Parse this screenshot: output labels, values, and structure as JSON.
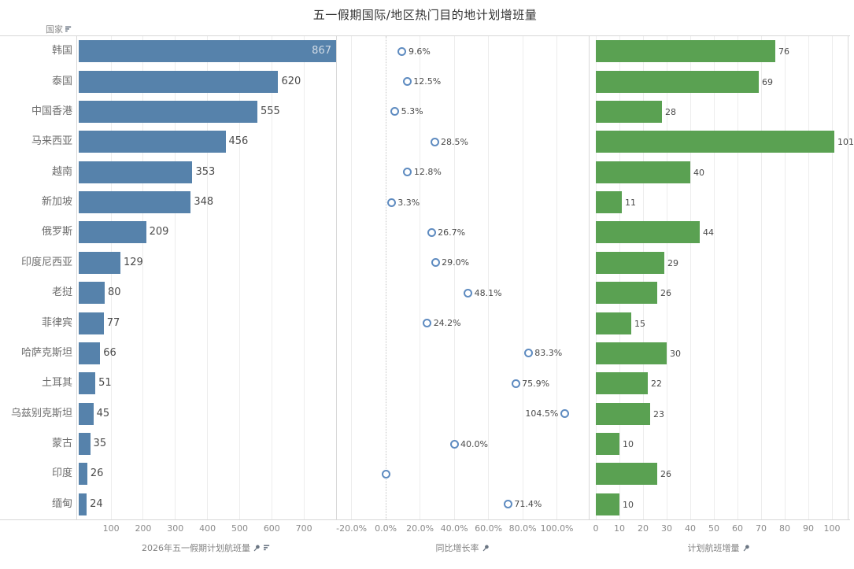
{
  "title": "五一假期国际/地区热门目的地计划增班量",
  "row_header": {
    "label": "国家"
  },
  "axis_titles": {
    "flights": "2026年五一假期计划航班量",
    "growth": "同比增长率",
    "increase": "计划航班增量"
  },
  "colors": {
    "bar_blue": "#5682ab",
    "bar_green": "#5aa152",
    "dot_stroke": "#5e8bc0",
    "grid": "#ededed",
    "border": "#d8d8d8",
    "label_dark": "#4a4a4a",
    "label_inside": "#d3dce6",
    "axis_text": "#8a8a8a"
  },
  "chart_data": {
    "type": "bar",
    "title": "五一假期国际/地区热门目的地计划增班量",
    "row_header": "国家",
    "orientation": "horizontal",
    "grid": true,
    "legend_position": "none",
    "categories": [
      "韩国",
      "泰国",
      "中国香港",
      "马来西亚",
      "越南",
      "新加坡",
      "俄罗斯",
      "印度尼西亚",
      "老挝",
      "菲律宾",
      "哈萨克斯坦",
      "土耳其",
      "乌兹别克斯坦",
      "蒙古",
      "印度",
      "缅甸"
    ],
    "series": [
      {
        "name": "2026年五一假期计划航班量",
        "mark": "bar",
        "color": "#5682ab",
        "label_inside_color": "#d3dce6",
        "values": [
          867,
          620,
          555,
          456,
          353,
          348,
          209,
          129,
          80,
          77,
          66,
          51,
          45,
          35,
          26,
          24
        ],
        "axis": {
          "min": -8,
          "max": 800,
          "ticks": [
            100,
            200,
            300,
            400,
            500,
            600,
            700
          ],
          "tick_labels": [
            "100",
            "200",
            "300",
            "400",
            "500",
            "600",
            "700"
          ]
        }
      },
      {
        "name": "同比增长率",
        "mark": "circle",
        "color": "#5e8bc0",
        "values": [
          9.6,
          12.5,
          5.3,
          28.5,
          12.8,
          3.3,
          26.7,
          29.0,
          48.1,
          24.2,
          83.3,
          75.9,
          104.5,
          40.0,
          0.0,
          71.4
        ],
        "labels": [
          "9.6%",
          "12.5%",
          "5.3%",
          "28.5%",
          "12.8%",
          "3.3%",
          "26.7%",
          "29.0%",
          "48.1%",
          "24.2%",
          "83.3%",
          "75.9%",
          "104.5%",
          "40.0%",
          "",
          "71.4%"
        ],
        "label_sides": [
          "right",
          "right",
          "right",
          "right",
          "right",
          "right",
          "right",
          "right",
          "right",
          "right",
          "right",
          "right",
          "left",
          "right",
          "right",
          "right"
        ],
        "axis": {
          "min": -29,
          "max": 118.6,
          "zero_line": true,
          "ticks": [
            -20,
            0,
            20,
            40,
            60,
            80,
            100
          ],
          "tick_labels": [
            "-20.0%",
            "0.0%",
            "20.0%",
            "40.0%",
            "60.0%",
            "80.0%",
            "100.0%"
          ]
        }
      },
      {
        "name": "计划航班增量",
        "mark": "bar",
        "color": "#5aa152",
        "values": [
          76,
          69,
          28,
          101,
          40,
          11,
          44,
          29,
          26,
          15,
          30,
          22,
          23,
          10,
          26,
          10
        ],
        "axis": {
          "min": -3,
          "max": 107,
          "ticks": [
            0,
            10,
            20,
            30,
            40,
            50,
            60,
            70,
            80,
            90,
            100
          ],
          "tick_labels": [
            "0",
            "10",
            "20",
            "30",
            "40",
            "50",
            "60",
            "70",
            "80",
            "90",
            "100"
          ]
        }
      }
    ]
  }
}
